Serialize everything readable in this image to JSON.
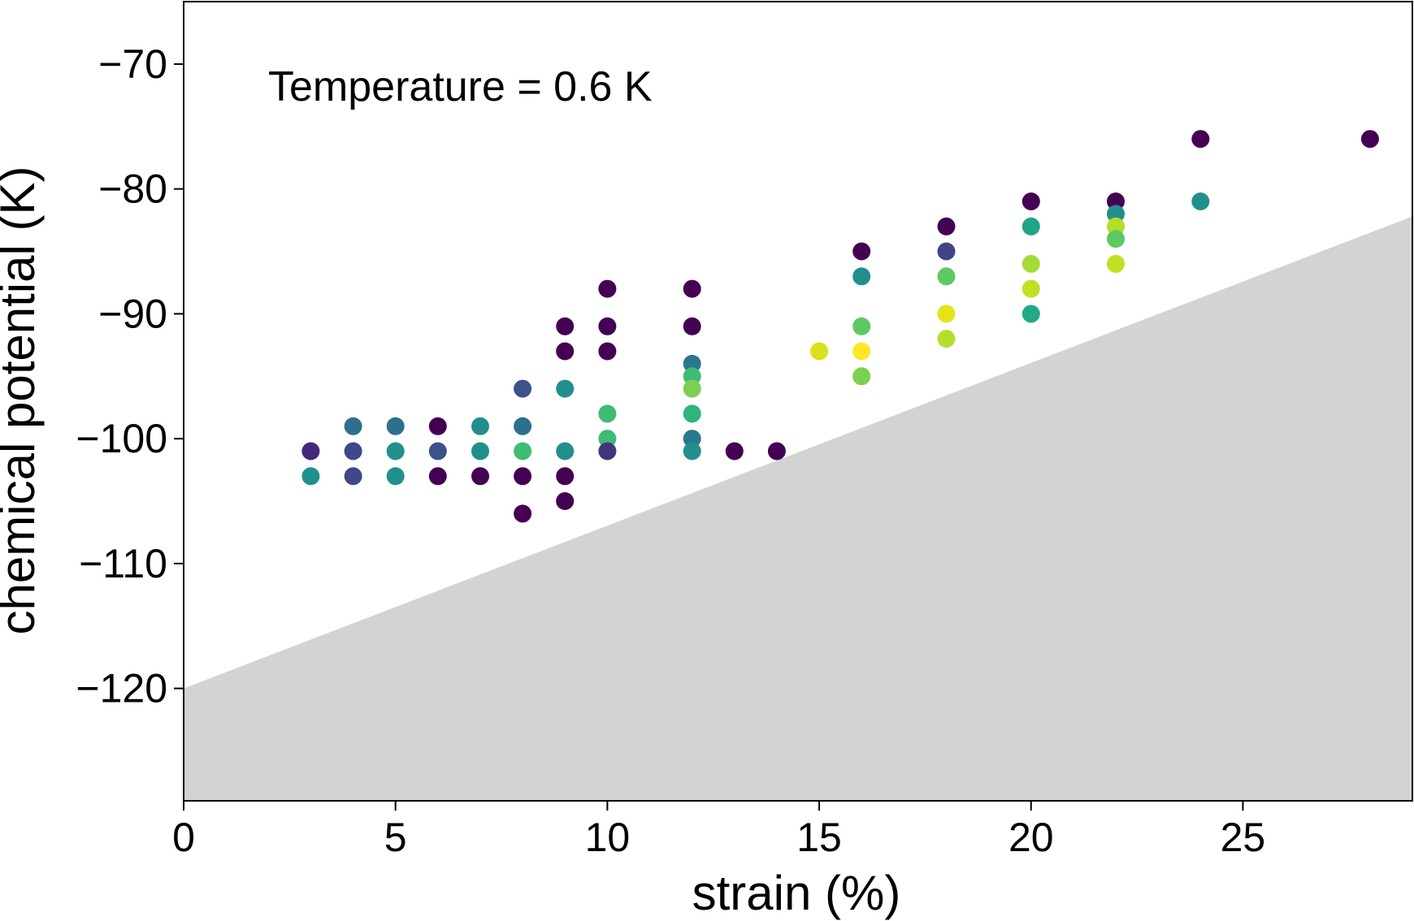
{
  "chart_data": {
    "type": "scatter",
    "title": "",
    "annotation": "Temperature = 0.6 K",
    "xlabel": "strain (%)",
    "ylabel": "chemical potential (K)",
    "xlim": [
      0,
      29
    ],
    "ylim": [
      -129,
      -65
    ],
    "xticks": [
      0,
      5,
      10,
      15,
      20,
      25
    ],
    "yticks": [
      -120,
      -110,
      -100,
      -90,
      -80,
      -70
    ],
    "xtick_labels": [
      "0",
      "5",
      "10",
      "15",
      "20",
      "25"
    ],
    "ytick_labels": [
      "−120",
      "−110",
      "−100",
      "−90",
      "−80",
      "−70"
    ],
    "grid": false,
    "shaded_region": {
      "color": "#d3d3d3",
      "boundary": [
        [
          0,
          -120
        ],
        [
          29,
          -82.2
        ]
      ],
      "fill": "below"
    },
    "colormap": "viridis",
    "points": [
      {
        "x": 3,
        "y": -101,
        "color": "#46277a"
      },
      {
        "x": 3,
        "y": -103,
        "color": "#21908d"
      },
      {
        "x": 4,
        "y": -99,
        "color": "#2d708e"
      },
      {
        "x": 4,
        "y": -101,
        "color": "#3f4889"
      },
      {
        "x": 4,
        "y": -103,
        "color": "#3f4889"
      },
      {
        "x": 5,
        "y": -99,
        "color": "#2d708e"
      },
      {
        "x": 5,
        "y": -101,
        "color": "#21908d"
      },
      {
        "x": 5,
        "y": -103,
        "color": "#21908d"
      },
      {
        "x": 6,
        "y": -99,
        "color": "#440154"
      },
      {
        "x": 6,
        "y": -101,
        "color": "#3b528b"
      },
      {
        "x": 6,
        "y": -103,
        "color": "#440154"
      },
      {
        "x": 7,
        "y": -99,
        "color": "#21908d"
      },
      {
        "x": 7,
        "y": -101,
        "color": "#21908d"
      },
      {
        "x": 7,
        "y": -103,
        "color": "#440154"
      },
      {
        "x": 8,
        "y": -96,
        "color": "#3b528b"
      },
      {
        "x": 8,
        "y": -99,
        "color": "#2d708e"
      },
      {
        "x": 8,
        "y": -101,
        "color": "#3dbc74"
      },
      {
        "x": 8,
        "y": -103,
        "color": "#440154"
      },
      {
        "x": 8,
        "y": -106,
        "color": "#440154"
      },
      {
        "x": 9,
        "y": -91,
        "color": "#440154"
      },
      {
        "x": 9,
        "y": -93,
        "color": "#440154"
      },
      {
        "x": 9,
        "y": -96,
        "color": "#21908d"
      },
      {
        "x": 9,
        "y": -101,
        "color": "#21908d"
      },
      {
        "x": 9,
        "y": -103,
        "color": "#440154"
      },
      {
        "x": 9,
        "y": -105,
        "color": "#440154"
      },
      {
        "x": 10,
        "y": -88,
        "color": "#440154"
      },
      {
        "x": 10,
        "y": -91,
        "color": "#440154"
      },
      {
        "x": 10,
        "y": -93,
        "color": "#440154"
      },
      {
        "x": 10,
        "y": -98,
        "color": "#3dbc74"
      },
      {
        "x": 10,
        "y": -100,
        "color": "#3dbc74"
      },
      {
        "x": 10,
        "y": -101,
        "color": "#46337e"
      },
      {
        "x": 12,
        "y": -88,
        "color": "#440154"
      },
      {
        "x": 12,
        "y": -91,
        "color": "#440154"
      },
      {
        "x": 12,
        "y": -94,
        "color": "#2a788e"
      },
      {
        "x": 12,
        "y": -95,
        "color": "#3dbc74"
      },
      {
        "x": 12,
        "y": -96,
        "color": "#7ad151"
      },
      {
        "x": 12,
        "y": -98,
        "color": "#2fb47c"
      },
      {
        "x": 12,
        "y": -100,
        "color": "#2a788e"
      },
      {
        "x": 12,
        "y": -101,
        "color": "#21908d"
      },
      {
        "x": 13,
        "y": -101,
        "color": "#440154"
      },
      {
        "x": 14,
        "y": -101,
        "color": "#440154"
      },
      {
        "x": 15,
        "y": -93,
        "color": "#d8e219"
      },
      {
        "x": 16,
        "y": -85,
        "color": "#440154"
      },
      {
        "x": 16,
        "y": -87,
        "color": "#21908d"
      },
      {
        "x": 16,
        "y": -91,
        "color": "#5ec962"
      },
      {
        "x": 16,
        "y": -93,
        "color": "#fde725"
      },
      {
        "x": 16,
        "y": -95,
        "color": "#7ad151"
      },
      {
        "x": 18,
        "y": -83,
        "color": "#440154"
      },
      {
        "x": 18,
        "y": -85,
        "color": "#414487"
      },
      {
        "x": 18,
        "y": -87,
        "color": "#5ec962"
      },
      {
        "x": 18,
        "y": -90,
        "color": "#e5e419"
      },
      {
        "x": 18,
        "y": -92,
        "color": "#b5de2b"
      },
      {
        "x": 20,
        "y": -81,
        "color": "#440154"
      },
      {
        "x": 20,
        "y": -83,
        "color": "#20a486"
      },
      {
        "x": 20,
        "y": -86,
        "color": "#a5db36"
      },
      {
        "x": 20,
        "y": -88,
        "color": "#c2df23"
      },
      {
        "x": 20,
        "y": -90,
        "color": "#22a884"
      },
      {
        "x": 22,
        "y": -81,
        "color": "#440154"
      },
      {
        "x": 22,
        "y": -82,
        "color": "#21908d"
      },
      {
        "x": 22,
        "y": -83,
        "color": "#b5de2b"
      },
      {
        "x": 22,
        "y": -84,
        "color": "#5ec962"
      },
      {
        "x": 22,
        "y": -86,
        "color": "#c2df23"
      },
      {
        "x": 24,
        "y": -76,
        "color": "#440154"
      },
      {
        "x": 24,
        "y": -81,
        "color": "#21908d"
      },
      {
        "x": 28,
        "y": -76,
        "color": "#440154"
      }
    ]
  }
}
